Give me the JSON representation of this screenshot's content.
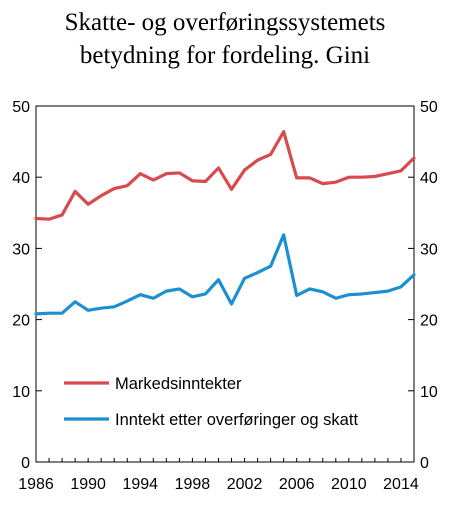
{
  "chart_data": {
    "type": "line",
    "title_line1": "Skatte- og overføringssystemets",
    "title_line2": "betydning for fordeling. Gini",
    "xlabel": "",
    "ylabel": "",
    "xlim": [
      1986,
      2015
    ],
    "ylim": [
      0,
      50
    ],
    "y_ticks": [
      0,
      10,
      20,
      30,
      40,
      50
    ],
    "x_ticks": [
      1986,
      1990,
      1994,
      1998,
      2002,
      2006,
      2010,
      2014
    ],
    "grid": false,
    "legend_position": "bottom-left",
    "x": [
      1986,
      1987,
      1988,
      1989,
      1990,
      1991,
      1992,
      1993,
      1994,
      1995,
      1996,
      1997,
      1998,
      1999,
      2000,
      2001,
      2002,
      2003,
      2004,
      2005,
      2006,
      2007,
      2008,
      2009,
      2010,
      2011,
      2012,
      2013,
      2014,
      2015
    ],
    "series": [
      {
        "name": "Markedsinntekter",
        "color": "#d94a4f",
        "values": [
          34.2,
          34.1,
          34.7,
          38.0,
          36.2,
          37.4,
          38.4,
          38.8,
          40.5,
          39.6,
          40.5,
          40.6,
          39.5,
          39.4,
          41.3,
          38.3,
          41.0,
          42.4,
          43.2,
          46.4,
          39.9,
          39.9,
          39.1,
          39.3,
          40.0,
          40.0,
          40.1,
          40.5,
          40.9,
          42.7
        ]
      },
      {
        "name": "Inntekt etter overføringer og skatt",
        "color": "#1b8fd2",
        "values": [
          20.8,
          20.9,
          20.9,
          22.5,
          21.3,
          21.6,
          21.8,
          22.6,
          23.5,
          23.0,
          24.0,
          24.3,
          23.2,
          23.6,
          25.6,
          22.2,
          25.8,
          26.6,
          27.5,
          31.9,
          23.4,
          24.3,
          23.9,
          23.0,
          23.5,
          23.6,
          23.8,
          24.0,
          24.6,
          26.3
        ]
      }
    ]
  }
}
